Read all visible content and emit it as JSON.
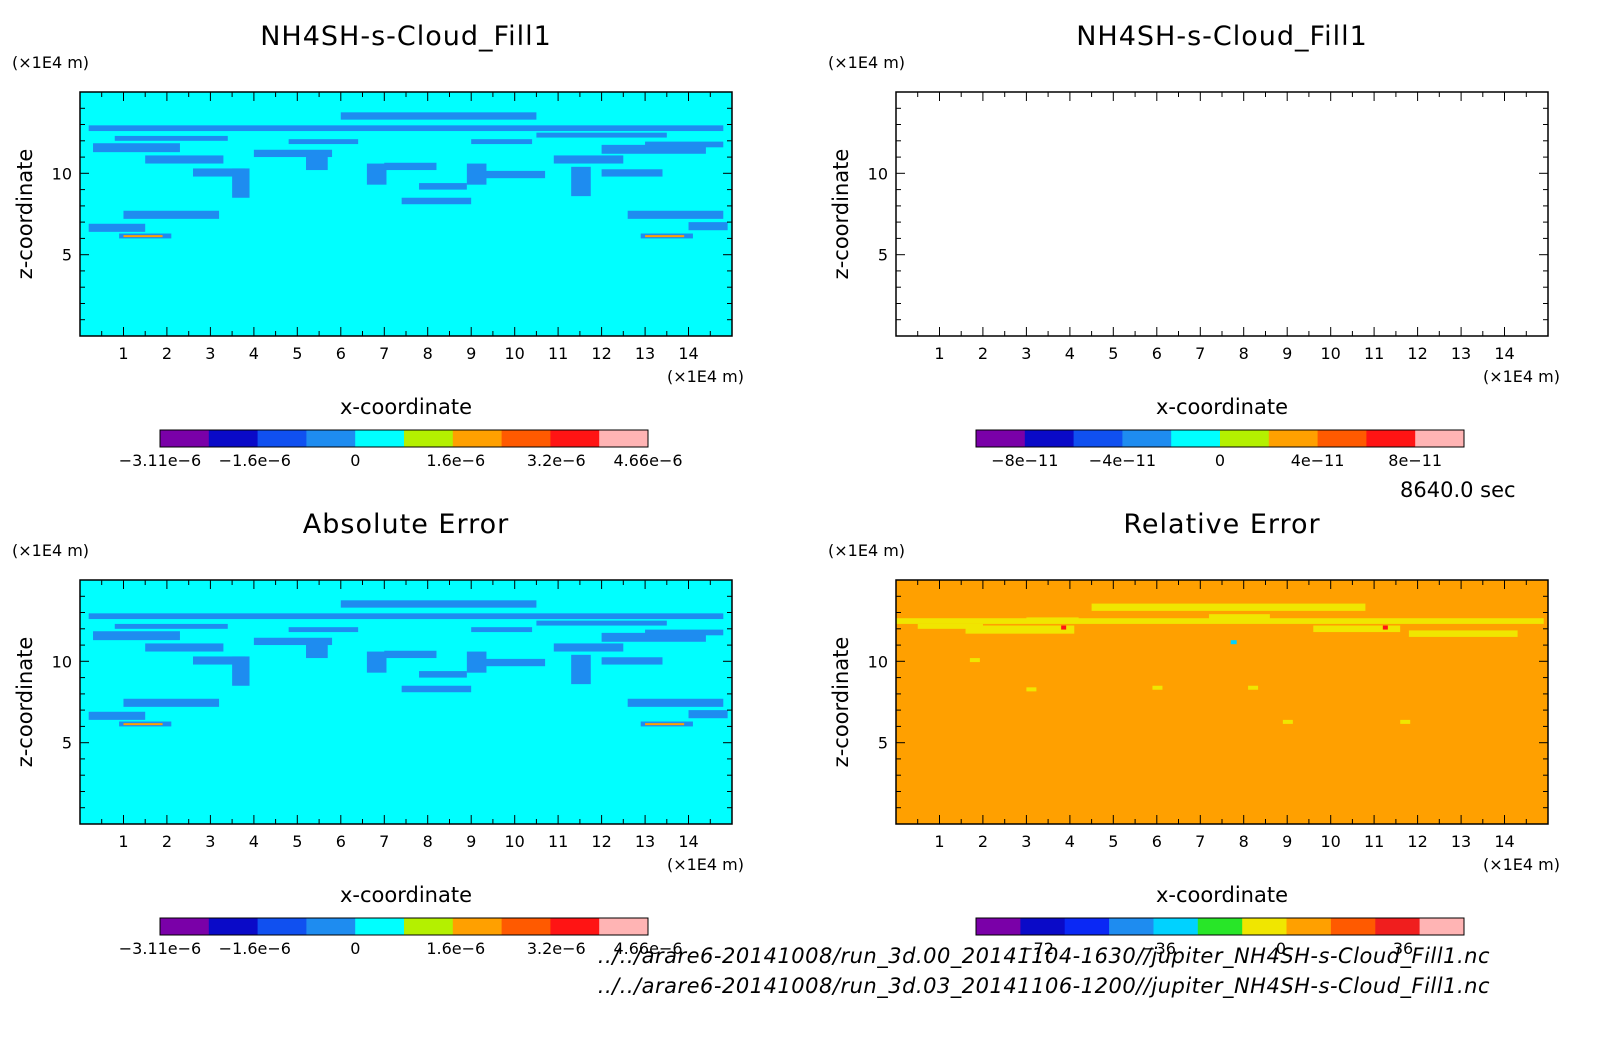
{
  "figure": {
    "time_label": "8640.0 sec",
    "files": [
      "../../arare6-20141008/run_3d.00_20141104-1630//jupiter_NH4SH-s-Cloud_Fill1.nc",
      "../../arare6-20141008/run_3d.03_20141106-1200//jupiter_NH4SH-s-Cloud_Fill1.nc"
    ]
  },
  "chart_data": [
    {
      "type": "heatmap",
      "title": "NH4SH-s-Cloud_Fill1",
      "xlabel": "x-coordinate",
      "ylabel": "z-coordinate",
      "x_unit": "(×1E4 m)",
      "y_unit": "(×1E4 m)",
      "xlim": [
        0,
        15
      ],
      "ylim": [
        0,
        15
      ],
      "x_ticks": [
        1,
        2,
        3,
        4,
        5,
        6,
        7,
        8,
        9,
        10,
        11,
        12,
        13,
        14
      ],
      "y_ticks": [
        5,
        10
      ],
      "field": "cloud_cyan",
      "colorbar": {
        "colors": [
          "#7a00a8",
          "#0a0ac8",
          "#1050f0",
          "#1e8cf0",
          "#00ffff",
          "#b4f000",
          "#ffa000",
          "#ff5a00",
          "#ff1414",
          "#ffb4b4"
        ],
        "tick_labels": [
          "−3.11e−6",
          "−1.6e−6",
          "0",
          "1.6e−6",
          "3.2e−6",
          "4.66e−6"
        ],
        "tick_values": [
          -3.11e-06,
          -1.6e-06,
          0,
          1.6e-06,
          3.2e-06,
          4.66e-06
        ],
        "range": [
          -3.11e-06,
          4.66e-06
        ]
      }
    },
    {
      "type": "heatmap",
      "title": "NH4SH-s-Cloud_Fill1",
      "xlabel": "x-coordinate",
      "ylabel": "z-coordinate",
      "x_unit": "(×1E4 m)",
      "y_unit": "(×1E4 m)",
      "xlim": [
        0,
        15
      ],
      "ylim": [
        0,
        15
      ],
      "x_ticks": [
        1,
        2,
        3,
        4,
        5,
        6,
        7,
        8,
        9,
        10,
        11,
        12,
        13,
        14
      ],
      "y_ticks": [
        5,
        10
      ],
      "field": "blank",
      "colorbar": {
        "colors": [
          "#7a00a8",
          "#0a0ac8",
          "#1050f0",
          "#1e8cf0",
          "#00ffff",
          "#b4f000",
          "#ffa000",
          "#ff5a00",
          "#ff1414",
          "#ffb4b4"
        ],
        "tick_labels": [
          "−8e−11",
          "−4e−11",
          "0",
          "4e−11",
          "8e−11"
        ],
        "tick_values": [
          -8e-11,
          -4e-11,
          0,
          4e-11,
          8e-11
        ],
        "range": [
          -1e-10,
          1e-10
        ]
      }
    },
    {
      "type": "heatmap",
      "title": "Absolute Error",
      "xlabel": "x-coordinate",
      "ylabel": "z-coordinate",
      "x_unit": "(×1E4 m)",
      "y_unit": "(×1E4 m)",
      "xlim": [
        0,
        15
      ],
      "ylim": [
        0,
        15
      ],
      "x_ticks": [
        1,
        2,
        3,
        4,
        5,
        6,
        7,
        8,
        9,
        10,
        11,
        12,
        13,
        14
      ],
      "y_ticks": [
        5,
        10
      ],
      "field": "cloud_cyan",
      "colorbar": {
        "colors": [
          "#7a00a8",
          "#0a0ac8",
          "#1050f0",
          "#1e8cf0",
          "#00ffff",
          "#b4f000",
          "#ffa000",
          "#ff5a00",
          "#ff1414",
          "#ffb4b4"
        ],
        "tick_labels": [
          "−3.11e−6",
          "−1.6e−6",
          "0",
          "1.6e−6",
          "3.2e−6",
          "4.66e−6"
        ],
        "tick_values": [
          -3.11e-06,
          -1.6e-06,
          0,
          1.6e-06,
          3.2e-06,
          4.66e-06
        ],
        "range": [
          -3.11e-06,
          4.66e-06
        ]
      }
    },
    {
      "type": "heatmap",
      "title": "Relative Error",
      "xlabel": "x-coordinate",
      "ylabel": "z-coordinate",
      "x_unit": "(×1E4 m)",
      "y_unit": "(×1E4 m)",
      "xlim": [
        0,
        15
      ],
      "ylim": [
        0,
        15
      ],
      "x_ticks": [
        1,
        2,
        3,
        4,
        5,
        6,
        7,
        8,
        9,
        10,
        11,
        12,
        13,
        14
      ],
      "y_ticks": [
        5,
        10
      ],
      "field": "relative_orange",
      "colorbar": {
        "colors": [
          "#7a00a8",
          "#0a0ac8",
          "#0a28f5",
          "#1e8cf0",
          "#00d2ff",
          "#28e628",
          "#f0e600",
          "#ffa000",
          "#ff5a00",
          "#f01e1e",
          "#ffb4b4"
        ],
        "tick_labels": [
          "−72",
          "−36",
          "0",
          "36"
        ],
        "tick_values": [
          -72,
          -36,
          0,
          36
        ],
        "range": [
          -90,
          54
        ]
      }
    }
  ]
}
